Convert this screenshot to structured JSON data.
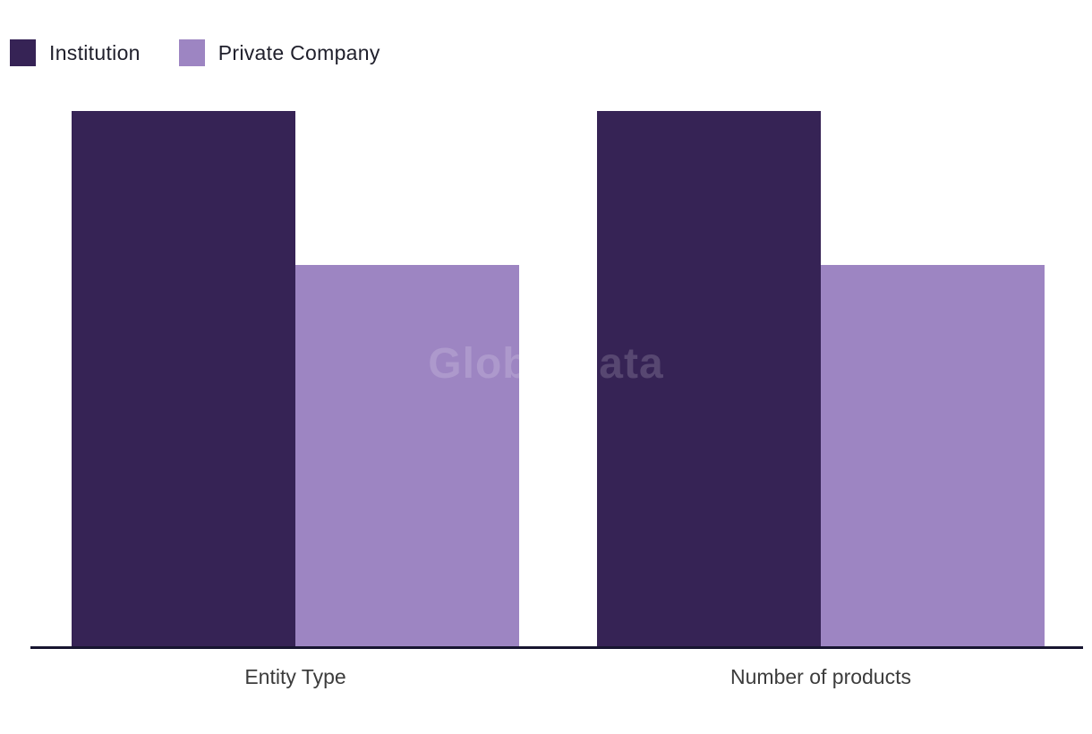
{
  "chart_data": {
    "type": "bar",
    "title": "",
    "xlabel": "",
    "ylabel": "",
    "categories": [
      "Entity Type",
      "Number of products"
    ],
    "series": [
      {
        "name": "Institution",
        "color": "#362355",
        "values": [
          1.0,
          1.0
        ]
      },
      {
        "name": "Private Company",
        "color": "#9d85c2",
        "values": [
          0.713,
          0.713
        ]
      }
    ],
    "ylim": [
      0,
      1
    ],
    "grid": false,
    "y_axis_visible": false,
    "legend_position": "top-left"
  },
  "legend": {
    "items": [
      {
        "label": "Institution",
        "color": "#362355"
      },
      {
        "label": "Private Company",
        "color": "#9d85c2"
      }
    ]
  },
  "watermark": {
    "text": "GlobalData"
  },
  "colors": {
    "institution": "#362355",
    "private_company": "#9d85c2",
    "axis_line": "#171530",
    "category_label_text": "#3c3c3c",
    "legend_text": "#20202c",
    "background": "#ffffff"
  }
}
